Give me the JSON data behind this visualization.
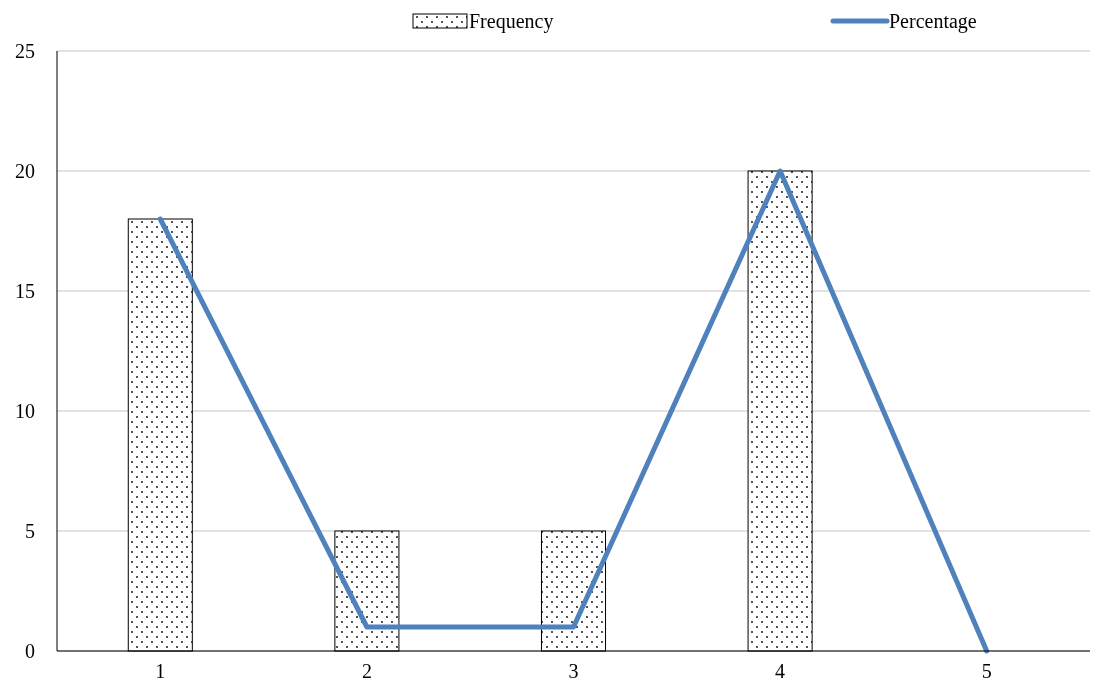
{
  "chart_data": {
    "type": "bar",
    "categories": [
      "1",
      "2",
      "3",
      "4",
      "5"
    ],
    "series": [
      {
        "name": "Frequency",
        "color": "#000000",
        "values": [
          18,
          5,
          5,
          20,
          0
        ]
      },
      {
        "name": "Percentage",
        "type": "line",
        "color": "#4f81bd",
        "values": [
          18,
          1,
          1,
          20,
          0
        ]
      }
    ],
    "ylim": [
      0,
      25
    ],
    "yticks": [
      0,
      5,
      10,
      15,
      20,
      25
    ],
    "grid": "y",
    "legend": "top",
    "marker": "none",
    "line_style": "solid"
  }
}
